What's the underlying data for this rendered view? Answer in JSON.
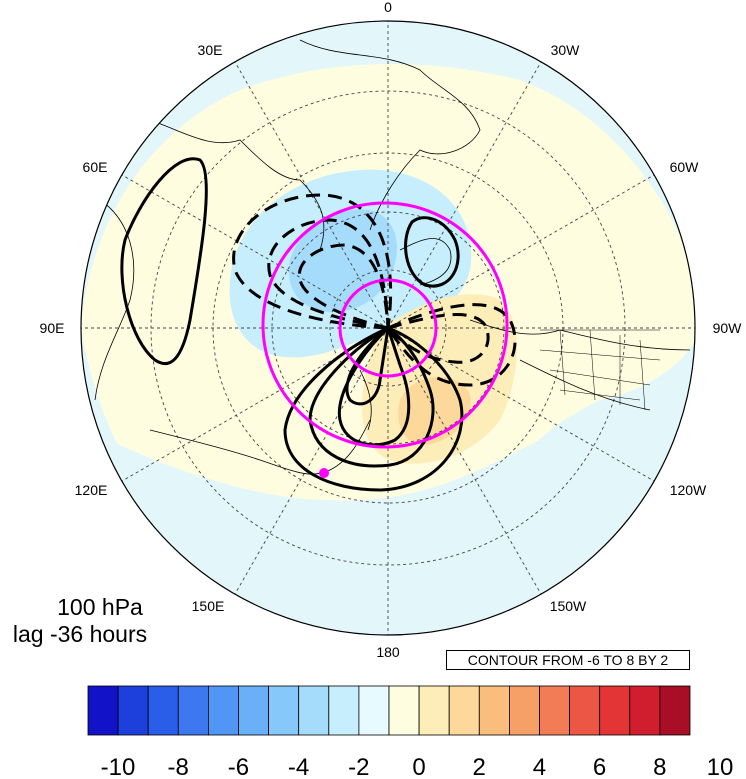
{
  "map": {
    "projection": "north polar stereographic",
    "lon_labels": [
      "0",
      "30W",
      "60W",
      "90W",
      "120W",
      "150W",
      "180",
      "150E",
      "120E",
      "90E",
      "60E",
      "30E"
    ],
    "highlight_color": "#ff00ff",
    "marker_color": "#ff00ff"
  },
  "caption": {
    "level": "100 hPa",
    "lag": "lag -36 hours"
  },
  "contour_info": "CONTOUR FROM -6 TO 8 BY 2",
  "colorbar": {
    "colors": [
      "#1212c8",
      "#1d3fdc",
      "#2a5ee8",
      "#3d78f0",
      "#5096f5",
      "#6ab0f8",
      "#86c8fa",
      "#a6dcfb",
      "#c6eefc",
      "#e6faff",
      "#fffde0",
      "#fdedb8",
      "#fcd89a",
      "#f9bd7e",
      "#f6a068",
      "#f27c55",
      "#ec5644",
      "#e43536",
      "#d01e2e",
      "#a80e25"
    ],
    "ticks": [
      "-10",
      "-8",
      "-6",
      "-4",
      "-2",
      "0",
      "2",
      "4",
      "6",
      "8",
      "10"
    ]
  }
}
